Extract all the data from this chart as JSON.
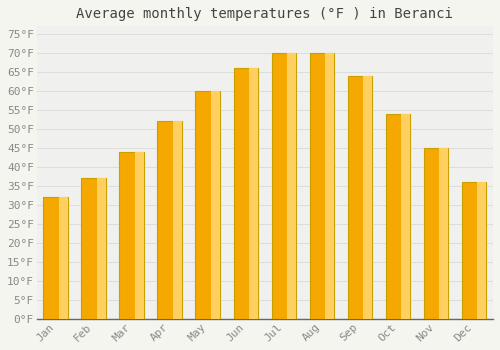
{
  "title": "Average monthly temperatures (°F ) in Beranci",
  "months": [
    "Jan",
    "Feb",
    "Mar",
    "Apr",
    "May",
    "Jun",
    "Jul",
    "Aug",
    "Sep",
    "Oct",
    "Nov",
    "Dec"
  ],
  "values": [
    32,
    37,
    44,
    52,
    60,
    66,
    70,
    70,
    64,
    54,
    45,
    36
  ],
  "bar_color_left": "#F5A800",
  "bar_color_right": "#FFD060",
  "bar_edge_color": "#C8A000",
  "background_color": "#F5F5F0",
  "plot_bg_color": "#F0F0EE",
  "grid_color": "#DDDDDD",
  "ylim": [
    0,
    77
  ],
  "yticks": [
    0,
    5,
    10,
    15,
    20,
    25,
    30,
    35,
    40,
    45,
    50,
    55,
    60,
    65,
    70,
    75
  ],
  "tick_label_color": "#888888",
  "title_fontsize": 10,
  "axis_fontsize": 8,
  "font_family": "monospace",
  "bar_width": 0.65
}
